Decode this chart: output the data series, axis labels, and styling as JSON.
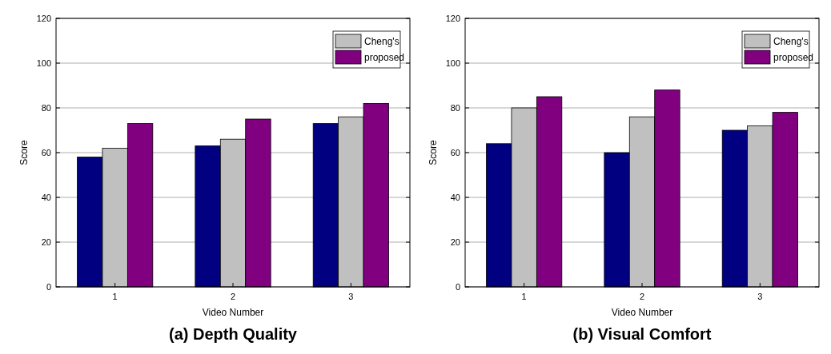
{
  "chart_data": [
    {
      "type": "bar",
      "title": "(a) Depth Quality",
      "xlabel": "Video Number",
      "ylabel": "Score",
      "categories": [
        "1",
        "2",
        "3"
      ],
      "series": [
        {
          "color": "#000080",
          "values": [
            58,
            63,
            73
          ]
        },
        {
          "name": "Cheng's",
          "color": "#c0c0c0",
          "values": [
            62,
            66,
            76
          ]
        },
        {
          "name": "proposed",
          "color": "#800080",
          "values": [
            73,
            75,
            82
          ]
        }
      ],
      "ylim": [
        0,
        120
      ],
      "yticks": [
        0,
        20,
        40,
        60,
        80,
        100,
        120
      ],
      "grid": "y",
      "legend": "top right"
    },
    {
      "type": "bar",
      "title": "(b) Visual Comfort",
      "xlabel": "Video Number",
      "ylabel": "Score",
      "categories": [
        "1",
        "2",
        "3"
      ],
      "series": [
        {
          "color": "#000080",
          "values": [
            64,
            60,
            70
          ]
        },
        {
          "name": "Cheng's",
          "color": "#c0c0c0",
          "values": [
            80,
            76,
            72
          ]
        },
        {
          "name": "proposed",
          "color": "#800080",
          "values": [
            85,
            88,
            78
          ]
        }
      ],
      "ylim": [
        0,
        120
      ],
      "yticks": [
        0,
        20,
        40,
        60,
        80,
        100,
        120
      ],
      "grid": "y",
      "legend": "top right"
    }
  ]
}
